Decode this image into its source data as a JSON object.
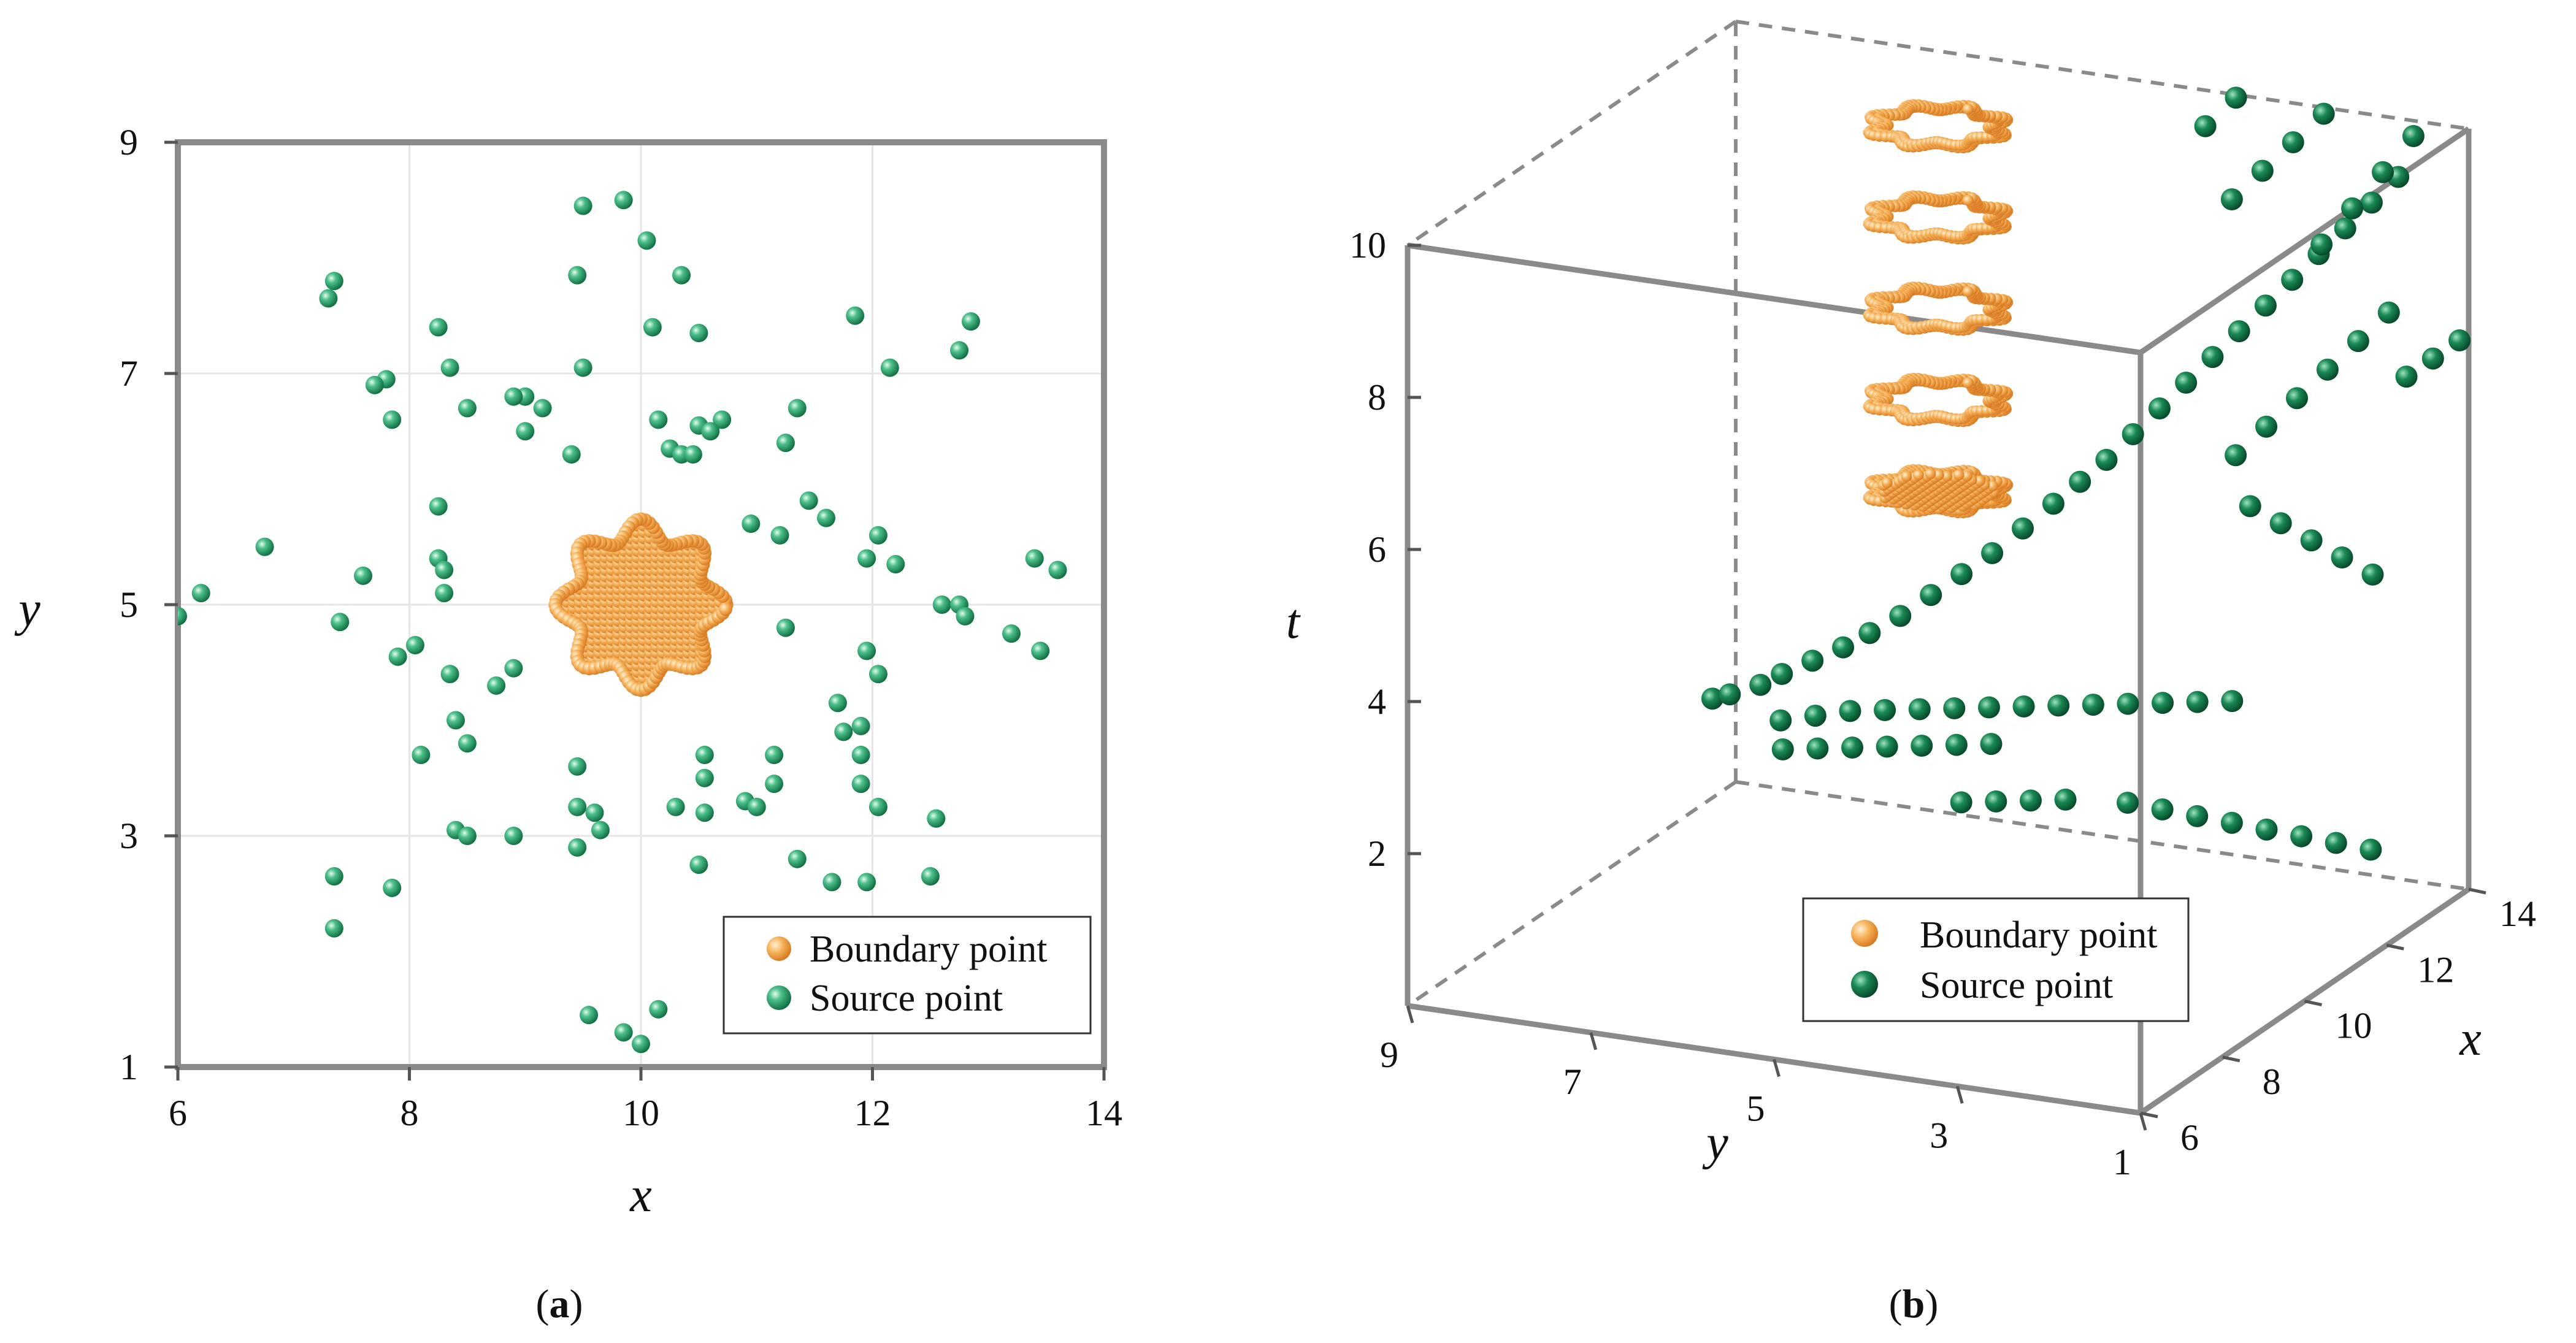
{
  "chart_data": [
    {
      "type": "scatter",
      "panel_label": "(a)",
      "caption_open": "(",
      "caption_letter": "a",
      "caption_close": ")",
      "xlabel": "x",
      "ylabel": "y",
      "xlim": [
        6,
        14
      ],
      "ylim": [
        1,
        9
      ],
      "xticks": [
        6,
        8,
        10,
        12,
        14
      ],
      "yticks": [
        1,
        3,
        5,
        7,
        9
      ],
      "grid": true,
      "legend_position": "bottom-right",
      "colors": {
        "boundary": "#f0a040",
        "source": "#1f9e6a",
        "frame": "#888888",
        "grid": "#e6e6e6"
      },
      "series": [
        {
          "name": "Boundary point",
          "marker": "orange-sphere",
          "shape": "gear",
          "center": [
            10,
            5
          ],
          "radius": 0.65,
          "lobes": 8,
          "lobe_amplitude": 0.09
        },
        {
          "name": "Source point",
          "marker": "green-sphere",
          "points": [
            [
              9.5,
              8.45
            ],
            [
              9.85,
              8.5
            ],
            [
              10.05,
              8.15
            ],
            [
              9.45,
              7.85
            ],
            [
              10.35,
              7.85
            ],
            [
              7.35,
              7.8
            ],
            [
              7.3,
              7.65
            ],
            [
              11.85,
              7.5
            ],
            [
              12.85,
              7.45
            ],
            [
              8.25,
              7.4
            ],
            [
              10.1,
              7.4
            ],
            [
              10.5,
              7.35
            ],
            [
              12.75,
              7.2
            ],
            [
              8.35,
              7.05
            ],
            [
              9.5,
              7.05
            ],
            [
              12.15,
              7.05
            ],
            [
              7.8,
              6.95
            ],
            [
              7.7,
              6.9
            ],
            [
              9.0,
              6.8
            ],
            [
              8.9,
              6.8
            ],
            [
              9.15,
              6.7
            ],
            [
              8.5,
              6.7
            ],
            [
              7.85,
              6.6
            ],
            [
              10.15,
              6.6
            ],
            [
              10.5,
              6.55
            ],
            [
              10.7,
              6.6
            ],
            [
              10.6,
              6.5
            ],
            [
              11.35,
              6.7
            ],
            [
              9.0,
              6.5
            ],
            [
              11.25,
              6.4
            ],
            [
              10.25,
              6.35
            ],
            [
              10.35,
              6.3
            ],
            [
              10.45,
              6.3
            ],
            [
              9.4,
              6.3
            ],
            [
              8.25,
              5.85
            ],
            [
              11.45,
              5.9
            ],
            [
              11.6,
              5.75
            ],
            [
              10.95,
              5.7
            ],
            [
              11.2,
              5.6
            ],
            [
              12.05,
              5.6
            ],
            [
              6.75,
              5.5
            ],
            [
              8.25,
              5.4
            ],
            [
              11.95,
              5.4
            ],
            [
              12.2,
              5.35
            ],
            [
              8.3,
              5.3
            ],
            [
              13.4,
              5.4
            ],
            [
              13.6,
              5.3
            ],
            [
              7.6,
              5.25
            ],
            [
              6.2,
              5.1
            ],
            [
              8.3,
              5.1
            ],
            [
              12.6,
              5.0
            ],
            [
              12.75,
              5.0
            ],
            [
              6.0,
              4.9
            ],
            [
              12.8,
              4.9
            ],
            [
              7.4,
              4.85
            ],
            [
              11.25,
              4.8
            ],
            [
              13.2,
              4.75
            ],
            [
              8.05,
              4.65
            ],
            [
              7.9,
              4.55
            ],
            [
              11.95,
              4.6
            ],
            [
              13.45,
              4.6
            ],
            [
              8.35,
              4.4
            ],
            [
              8.9,
              4.45
            ],
            [
              8.75,
              4.3
            ],
            [
              12.05,
              4.4
            ],
            [
              11.7,
              4.15
            ],
            [
              8.4,
              4.0
            ],
            [
              11.75,
              3.9
            ],
            [
              11.9,
              3.95
            ],
            [
              11.9,
              3.7
            ],
            [
              8.5,
              3.8
            ],
            [
              8.1,
              3.7
            ],
            [
              10.55,
              3.7
            ],
            [
              11.15,
              3.7
            ],
            [
              9.45,
              3.6
            ],
            [
              10.55,
              3.5
            ],
            [
              11.15,
              3.45
            ],
            [
              11.9,
              3.45
            ],
            [
              10.9,
              3.3
            ],
            [
              11.0,
              3.25
            ],
            [
              9.45,
              3.25
            ],
            [
              9.6,
              3.2
            ],
            [
              10.3,
              3.25
            ],
            [
              10.55,
              3.2
            ],
            [
              12.05,
              3.25
            ],
            [
              12.55,
              3.15
            ],
            [
              8.4,
              3.05
            ],
            [
              8.5,
              3.0
            ],
            [
              8.9,
              3.0
            ],
            [
              9.65,
              3.05
            ],
            [
              9.45,
              2.9
            ],
            [
              10.5,
              2.75
            ],
            [
              11.35,
              2.8
            ],
            [
              7.35,
              2.65
            ],
            [
              12.5,
              2.65
            ],
            [
              11.65,
              2.6
            ],
            [
              11.95,
              2.6
            ],
            [
              7.85,
              2.55
            ],
            [
              7.35,
              2.2
            ],
            [
              9.55,
              1.45
            ],
            [
              10.15,
              1.5
            ],
            [
              9.85,
              1.3
            ],
            [
              10.0,
              1.2
            ]
          ]
        }
      ]
    },
    {
      "type": "scatter",
      "panel_label": "(b)",
      "caption_open": "(",
      "caption_letter": "b",
      "caption_close": ")",
      "xlabel": "x",
      "ylabel": "y",
      "zlabel": "t",
      "xlim": [
        6,
        14
      ],
      "ylim": [
        1,
        9
      ],
      "zlim": [
        0,
        10
      ],
      "xticks": [
        6,
        8,
        10,
        12,
        14
      ],
      "yticks": [
        9,
        7,
        5,
        3,
        1
      ],
      "zticks": [
        2,
        4,
        6,
        8,
        10
      ],
      "legend_position": "bottom-center",
      "colors": {
        "boundary": "#f0a040",
        "source": "#1a8a55",
        "frame": "#888888"
      },
      "series": [
        {
          "name": "Boundary point",
          "marker": "orange-sphere",
          "shape": "gear rings",
          "center": [
            10,
            5
          ],
          "radius": 0.65,
          "t_layers": [
            6,
            7.2,
            8.4,
            9.6,
            10.8
          ]
        },
        {
          "name": "Source point",
          "marker": "green-sphere",
          "points": [
            [
              7.4,
              6.3,
              4
            ],
            [
              7.6,
              6.2,
              4
            ],
            [
              7.9,
              6.0,
              4.05
            ],
            [
              8.2,
              5.9,
              4.1
            ],
            [
              8.5,
              5.7,
              4.2
            ],
            [
              8.8,
              5.5,
              4.3
            ],
            [
              9.0,
              5.3,
              4.45
            ],
            [
              9.3,
              5.1,
              4.6
            ],
            [
              9.6,
              4.9,
              4.8
            ],
            [
              9.9,
              4.7,
              5.0
            ],
            [
              10.2,
              4.5,
              5.2
            ],
            [
              10.5,
              4.3,
              5.45
            ],
            [
              10.8,
              4.1,
              5.7
            ],
            [
              11.0,
              3.9,
              5.95
            ],
            [
              11.2,
              3.7,
              6.2
            ],
            [
              11.4,
              3.5,
              6.5
            ],
            [
              11.6,
              3.3,
              6.8
            ],
            [
              11.8,
              3.1,
              7.1
            ],
            [
              12.0,
              2.9,
              7.4
            ],
            [
              12.2,
              2.7,
              7.7
            ],
            [
              12.4,
              2.5,
              8.0
            ],
            [
              12.6,
              2.3,
              8.3
            ],
            [
              12.8,
              2.1,
              8.6
            ],
            [
              13.0,
              1.9,
              8.9
            ],
            [
              13.2,
              1.7,
              9.2
            ],
            [
              13.4,
              1.5,
              9.5
            ],
            [
              7.5,
              5.6,
              3.8
            ],
            [
              7.9,
              5.4,
              3.75
            ],
            [
              8.3,
              5.2,
              3.7
            ],
            [
              8.7,
              5.0,
              3.6
            ],
            [
              9.1,
              4.8,
              3.5
            ],
            [
              9.5,
              4.6,
              3.4
            ],
            [
              9.9,
              4.4,
              3.3
            ],
            [
              10.3,
              4.2,
              3.2
            ],
            [
              10.7,
              4.0,
              3.1
            ],
            [
              11.1,
              3.8,
              3.0
            ],
            [
              11.5,
              3.6,
              2.9
            ],
            [
              11.9,
              3.4,
              2.8
            ],
            [
              12.3,
              3.2,
              2.7
            ],
            [
              12.7,
              3.0,
              2.6
            ],
            [
              11.0,
              2.2,
              6.6
            ],
            [
              11.3,
              2.0,
              6.9
            ],
            [
              11.6,
              1.8,
              7.2
            ],
            [
              11.9,
              1.6,
              7.5
            ],
            [
              12.2,
              1.4,
              7.8
            ],
            [
              12.5,
              1.2,
              8.1
            ],
            [
              12.2,
              1.8,
              9.0
            ],
            [
              12.5,
              1.6,
              9.4
            ],
            [
              12.8,
              1.4,
              9.8
            ],
            [
              13.1,
              1.2,
              10.2
            ],
            [
              11.8,
              2.6,
              9.6
            ],
            [
              12.1,
              2.4,
              9.9
            ],
            [
              12.4,
              2.2,
              10.2
            ],
            [
              12.7,
              2.0,
              10.5
            ],
            [
              13.0,
              1.8,
              10.8
            ],
            [
              13.3,
              1.6,
              11.1
            ],
            [
              13.6,
              1.4,
              11.4
            ],
            [
              11.6,
              2.8,
              10.6
            ],
            [
              11.9,
              2.6,
              10.9
            ],
            [
              12.2,
              2.4,
              11.2
            ],
            [
              12.5,
              2.2,
              11.5
            ],
            [
              13.6,
              1.5,
              6.8
            ],
            [
              13.8,
              1.3,
              7.0
            ],
            [
              14.0,
              1.1,
              7.2
            ],
            [
              11.8,
              2.4,
              5.6
            ],
            [
              12.1,
              2.2,
              5.3
            ],
            [
              12.4,
              2.0,
              5.0
            ],
            [
              12.7,
              1.8,
              4.7
            ],
            [
              13.0,
              1.6,
              4.4
            ],
            [
              10.6,
              3.2,
              2.0
            ],
            [
              11.0,
              3.0,
              1.8
            ],
            [
              11.4,
              2.8,
              1.6
            ],
            [
              11.8,
              2.6,
              1.4
            ],
            [
              12.2,
              2.4,
              1.2
            ],
            [
              12.6,
              2.2,
              1.0
            ],
            [
              13.0,
              2.0,
              0.8
            ],
            [
              13.4,
              1.8,
              0.6
            ],
            [
              9.0,
              4.3,
              2.4
            ],
            [
              9.4,
              4.1,
              2.3
            ],
            [
              9.8,
              3.9,
              2.2
            ],
            [
              10.2,
              3.7,
              2.1
            ],
            [
              8.0,
              5.8,
              3.2
            ],
            [
              8.4,
              5.6,
              3.1
            ],
            [
              8.8,
              5.4,
              3.0
            ],
            [
              9.2,
              5.2,
              2.9
            ],
            [
              9.6,
              5.0,
              2.8
            ],
            [
              10.0,
              4.8,
              2.7
            ],
            [
              10.4,
              4.6,
              2.6
            ]
          ]
        }
      ]
    }
  ]
}
